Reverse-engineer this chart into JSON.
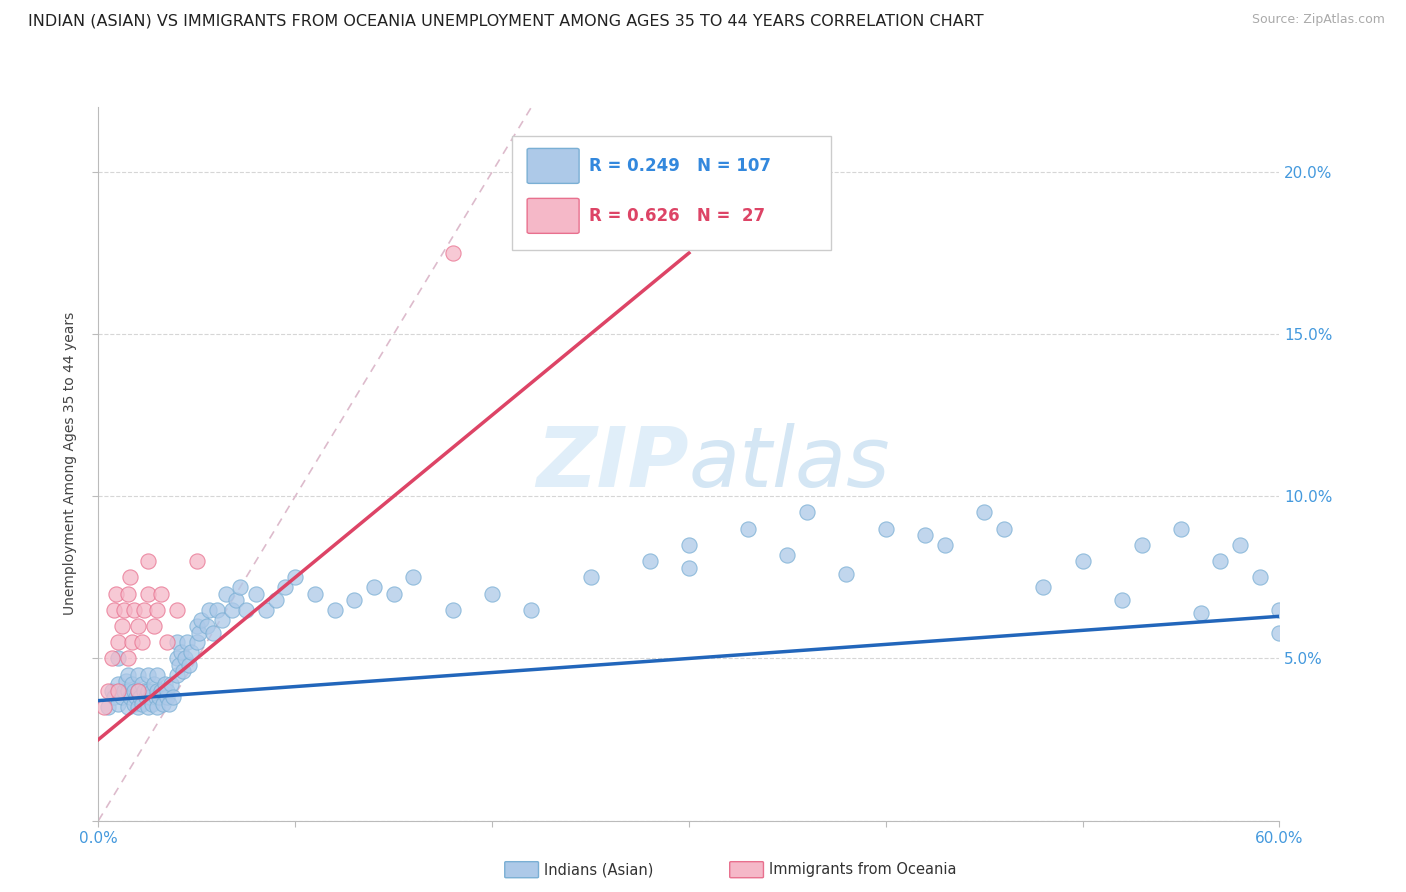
{
  "title": "INDIAN (ASIAN) VS IMMIGRANTS FROM OCEANIA UNEMPLOYMENT AMONG AGES 35 TO 44 YEARS CORRELATION CHART",
  "source_text": "Source: ZipAtlas.com",
  "ylabel": "Unemployment Among Ages 35 to 44 years",
  "xlim": [
    0.0,
    0.6
  ],
  "ylim": [
    0.0,
    0.22
  ],
  "blue_color": "#adc9e8",
  "blue_edge": "#7aafd4",
  "pink_color": "#f5b8c8",
  "pink_edge": "#e8708e",
  "trend_blue": "#2266bb",
  "trend_pink": "#dd4466",
  "ref_line_color": "#ddbbcc",
  "legend_color_blue": "#3388dd",
  "legend_color_pink": "#dd4466",
  "legend_R_blue": "0.249",
  "legend_N_blue": "107",
  "legend_R_pink": "0.626",
  "legend_N_pink": "27",
  "watermark_zip": "ZIP",
  "watermark_atlas": "atlas",
  "tick_color": "#4499dd",
  "title_fontsize": 11.5,
  "axis_label_fontsize": 10,
  "tick_fontsize": 11,
  "scatter_size": 120,
  "blue_scatter_x": [
    0.005,
    0.007,
    0.008,
    0.01,
    0.01,
    0.01,
    0.012,
    0.013,
    0.014,
    0.015,
    0.015,
    0.015,
    0.016,
    0.017,
    0.018,
    0.018,
    0.019,
    0.02,
    0.02,
    0.02,
    0.021,
    0.022,
    0.022,
    0.023,
    0.024,
    0.025,
    0.025,
    0.025,
    0.026,
    0.027,
    0.027,
    0.028,
    0.029,
    0.03,
    0.03,
    0.03,
    0.031,
    0.032,
    0.033,
    0.034,
    0.035,
    0.035,
    0.036,
    0.037,
    0.038,
    0.04,
    0.04,
    0.04,
    0.041,
    0.042,
    0.043,
    0.044,
    0.045,
    0.046,
    0.047,
    0.05,
    0.05,
    0.051,
    0.052,
    0.055,
    0.056,
    0.058,
    0.06,
    0.063,
    0.065,
    0.068,
    0.07,
    0.072,
    0.075,
    0.08,
    0.085,
    0.09,
    0.095,
    0.1,
    0.11,
    0.12,
    0.13,
    0.14,
    0.15,
    0.16,
    0.18,
    0.2,
    0.22,
    0.25,
    0.28,
    0.3,
    0.33,
    0.36,
    0.4,
    0.43,
    0.46,
    0.5,
    0.53,
    0.55,
    0.57,
    0.58,
    0.59,
    0.6,
    0.3,
    0.35,
    0.38,
    0.42,
    0.48,
    0.52,
    0.56,
    0.6,
    0.45
  ],
  "blue_scatter_y": [
    0.035,
    0.04,
    0.038,
    0.042,
    0.036,
    0.05,
    0.038,
    0.04,
    0.043,
    0.035,
    0.04,
    0.045,
    0.038,
    0.042,
    0.036,
    0.04,
    0.038,
    0.04,
    0.035,
    0.045,
    0.038,
    0.036,
    0.042,
    0.04,
    0.038,
    0.035,
    0.04,
    0.045,
    0.038,
    0.04,
    0.036,
    0.042,
    0.038,
    0.04,
    0.035,
    0.045,
    0.038,
    0.04,
    0.036,
    0.042,
    0.038,
    0.04,
    0.036,
    0.042,
    0.038,
    0.05,
    0.045,
    0.055,
    0.048,
    0.052,
    0.046,
    0.05,
    0.055,
    0.048,
    0.052,
    0.055,
    0.06,
    0.058,
    0.062,
    0.06,
    0.065,
    0.058,
    0.065,
    0.062,
    0.07,
    0.065,
    0.068,
    0.072,
    0.065,
    0.07,
    0.065,
    0.068,
    0.072,
    0.075,
    0.07,
    0.065,
    0.068,
    0.072,
    0.07,
    0.075,
    0.065,
    0.07,
    0.065,
    0.075,
    0.08,
    0.085,
    0.09,
    0.095,
    0.09,
    0.085,
    0.09,
    0.08,
    0.085,
    0.09,
    0.08,
    0.085,
    0.075,
    0.065,
    0.078,
    0.082,
    0.076,
    0.088,
    0.072,
    0.068,
    0.064,
    0.058,
    0.095
  ],
  "pink_scatter_x": [
    0.003,
    0.005,
    0.007,
    0.008,
    0.009,
    0.01,
    0.01,
    0.012,
    0.013,
    0.015,
    0.015,
    0.016,
    0.017,
    0.018,
    0.02,
    0.02,
    0.022,
    0.023,
    0.025,
    0.025,
    0.028,
    0.03,
    0.032,
    0.035,
    0.04,
    0.05,
    0.18
  ],
  "pink_scatter_y": [
    0.035,
    0.04,
    0.05,
    0.065,
    0.07,
    0.04,
    0.055,
    0.06,
    0.065,
    0.05,
    0.07,
    0.075,
    0.055,
    0.065,
    0.04,
    0.06,
    0.055,
    0.065,
    0.07,
    0.08,
    0.06,
    0.065,
    0.07,
    0.055,
    0.065,
    0.08,
    0.175
  ],
  "blue_trend_x": [
    0.0,
    0.6
  ],
  "blue_trend_y": [
    0.037,
    0.063
  ],
  "pink_trend_x": [
    0.0,
    0.3
  ],
  "pink_trend_y": [
    0.025,
    0.175
  ],
  "ref_line_x": [
    0.0,
    0.22
  ],
  "ref_line_y": [
    0.0,
    0.22
  ]
}
